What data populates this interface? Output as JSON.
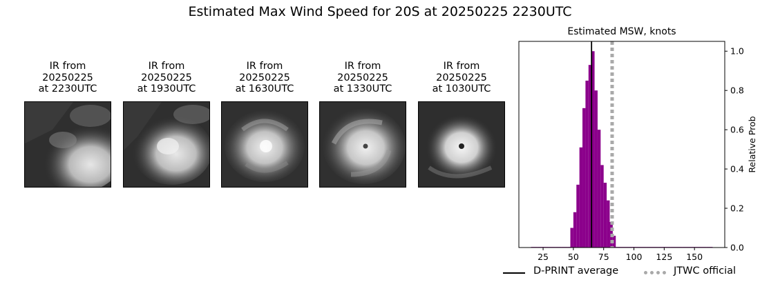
{
  "main_title": "Estimated Max Wind Speed for 20S at 20250225 2230UTC",
  "ir_panels": [
    {
      "line1": "IR from",
      "line2": "20250225",
      "line3": "at 2230UTC"
    },
    {
      "line1": "IR from",
      "line2": "20250225",
      "line3": "at 1930UTC"
    },
    {
      "line1": "IR from",
      "line2": "20250225",
      "line3": "at 1630UTC"
    },
    {
      "line1": "IR from",
      "line2": "20250225",
      "line3": "at 1330UTC"
    },
    {
      "line1": "IR from",
      "line2": "20250225",
      "line3": "at 1030UTC"
    }
  ],
  "chart_data": {
    "type": "bar",
    "title": "Estimated MSW, knots",
    "xlabel": "",
    "ylabel": "Relative Prob",
    "xlim": [
      5,
      175
    ],
    "ylim": [
      0,
      1.05
    ],
    "x_ticks": [
      25,
      50,
      75,
      100,
      125,
      150
    ],
    "y_ticks": [
      0.0,
      0.2,
      0.4,
      0.6,
      0.8,
      1.0
    ],
    "y_tick_labels": [
      "0.0",
      "0.2",
      "0.4",
      "0.6",
      "0.8",
      "1.0"
    ],
    "bin_width": 5,
    "bins": [
      {
        "x": 15,
        "value": 0.003
      },
      {
        "x": 20,
        "value": 0.003
      },
      {
        "x": 25,
        "value": 0.003
      },
      {
        "x": 30,
        "value": 0.003
      },
      {
        "x": 35,
        "value": 0.003
      },
      {
        "x": 40,
        "value": 0.003
      },
      {
        "x": 45,
        "value": 0.003
      },
      {
        "x": 47.5,
        "value": 0.1
      },
      {
        "x": 50,
        "value": 0.18
      },
      {
        "x": 52.5,
        "value": 0.32
      },
      {
        "x": 55,
        "value": 0.51
      },
      {
        "x": 57.5,
        "value": 0.71
      },
      {
        "x": 60,
        "value": 0.85
      },
      {
        "x": 62.5,
        "value": 0.93
      },
      {
        "x": 65,
        "value": 1.0
      },
      {
        "x": 67.5,
        "value": 0.8
      },
      {
        "x": 70,
        "value": 0.6
      },
      {
        "x": 72.5,
        "value": 0.42
      },
      {
        "x": 75,
        "value": 0.33
      },
      {
        "x": 77.5,
        "value": 0.24
      },
      {
        "x": 80,
        "value": 0.13
      },
      {
        "x": 82.5,
        "value": 0.06
      },
      {
        "x": 85,
        "value": 0.003
      },
      {
        "x": 90,
        "value": 0.003
      },
      {
        "x": 100,
        "value": 0.003
      },
      {
        "x": 110,
        "value": 0.003
      },
      {
        "x": 120,
        "value": 0.003
      },
      {
        "x": 130,
        "value": 0.003
      },
      {
        "x": 140,
        "value": 0.003
      },
      {
        "x": 150,
        "value": 0.003
      },
      {
        "x": 160,
        "value": 0.003
      }
    ],
    "dprint_average": 65,
    "jtwc_official": 82,
    "bar_color": "#8b008b",
    "dprint_color": "#000000",
    "jtwc_color": "#a9a9a9",
    "legend": {
      "placement": "bottom-right",
      "dprint_label": "D-PRINT average",
      "jtwc_label": "JTWC official"
    }
  }
}
